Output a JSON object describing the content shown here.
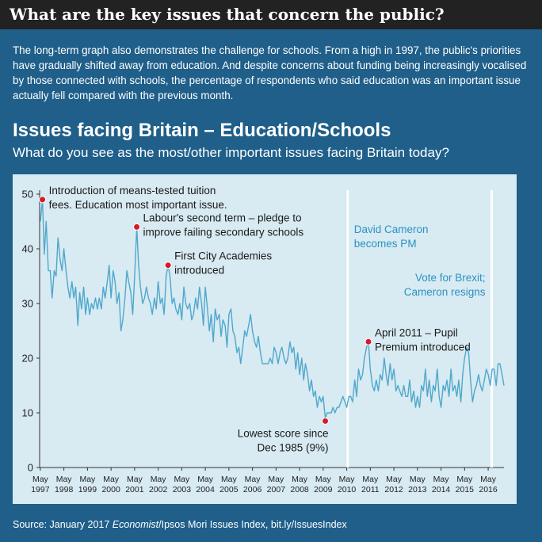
{
  "header": {
    "title": "What are the key issues that concern the public?"
  },
  "intro": "The long-term graph also demonstrates the challenge for schools. From a high in 1997, the public's priorities have gradually shifted away from education. And despite concerns about funding being increasingly vocalised by those connected with schools, the percentage of respondents who said education was an important issue actually fell compared with the previous month.",
  "source": {
    "prefix": "Source: January 2017 ",
    "italic": "Economist",
    "suffix": "/Ipsos Mori Issues Index, bit.ly/IssuesIndex"
  },
  "colors": {
    "background": "#1f5f8a",
    "panel": "#d8eaf2",
    "line": "#4fa8cc",
    "marker": "#d7192a",
    "event_text": "#2b93c2",
    "header": "#222222"
  },
  "chart_data": {
    "type": "line",
    "title": "Issues facing Britain – Education/Schools",
    "subtitle": "What do you see as the most/other important issues facing Britain today?",
    "ylim": [
      0,
      50
    ],
    "yticks": [
      0,
      10,
      20,
      30,
      40,
      50
    ],
    "xlim": [
      1997.3,
      2017.0
    ],
    "x_ticks": [
      {
        "year": "1997",
        "x": 1997.33
      },
      {
        "year": "1998",
        "x": 1998.33
      },
      {
        "year": "1999",
        "x": 1999.33
      },
      {
        "year": "2000",
        "x": 2000.33
      },
      {
        "year": "2001",
        "x": 2001.33
      },
      {
        "year": "2002",
        "x": 2002.33
      },
      {
        "year": "2003",
        "x": 2003.33
      },
      {
        "year": "2004",
        "x": 2004.33
      },
      {
        "year": "2005",
        "x": 2005.33
      },
      {
        "year": "2006",
        "x": 2006.33
      },
      {
        "year": "2007",
        "x": 2007.33
      },
      {
        "year": "2008",
        "x": 2008.33
      },
      {
        "year": "2009",
        "x": 2009.33
      },
      {
        "year": "2010",
        "x": 2010.33
      },
      {
        "year": "2011",
        "x": 2011.33
      },
      {
        "year": "2012",
        "x": 2012.33
      },
      {
        "year": "2013",
        "x": 2013.33
      },
      {
        "year": "2014",
        "x": 2014.33
      },
      {
        "year": "2015",
        "x": 2015.33
      },
      {
        "year": "2016",
        "x": 2016.33
      }
    ],
    "x_tick_month": "May",
    "series": [
      {
        "points": [
          [
            1997.33,
            45
          ],
          [
            1997.42,
            49
          ],
          [
            1997.5,
            39
          ],
          [
            1997.58,
            45
          ],
          [
            1997.67,
            36
          ],
          [
            1997.75,
            36
          ],
          [
            1997.83,
            31
          ],
          [
            1997.92,
            36
          ],
          [
            1998.0,
            35
          ],
          [
            1998.08,
            42
          ],
          [
            1998.17,
            38
          ],
          [
            1998.25,
            36
          ],
          [
            1998.33,
            40
          ],
          [
            1998.42,
            36
          ],
          [
            1998.5,
            33
          ],
          [
            1998.58,
            31
          ],
          [
            1998.67,
            34
          ],
          [
            1998.75,
            31
          ],
          [
            1998.83,
            33
          ],
          [
            1998.92,
            26
          ],
          [
            1999.0,
            32
          ],
          [
            1999.08,
            29
          ],
          [
            1999.17,
            33
          ],
          [
            1999.25,
            28
          ],
          [
            1999.33,
            31
          ],
          [
            1999.42,
            28
          ],
          [
            1999.5,
            30
          ],
          [
            1999.58,
            29
          ],
          [
            1999.67,
            31
          ],
          [
            1999.75,
            29
          ],
          [
            1999.83,
            31
          ],
          [
            1999.92,
            29
          ],
          [
            2000.0,
            33
          ],
          [
            2000.08,
            31
          ],
          [
            2000.17,
            34
          ],
          [
            2000.25,
            37
          ],
          [
            2000.33,
            31
          ],
          [
            2000.42,
            36
          ],
          [
            2000.5,
            34
          ],
          [
            2000.58,
            30
          ],
          [
            2000.67,
            32
          ],
          [
            2000.75,
            25
          ],
          [
            2000.83,
            27
          ],
          [
            2000.92,
            31
          ],
          [
            2001.0,
            36
          ],
          [
            2001.08,
            34
          ],
          [
            2001.17,
            32
          ],
          [
            2001.25,
            28
          ],
          [
            2001.33,
            35
          ],
          [
            2001.42,
            44
          ],
          [
            2001.5,
            37
          ],
          [
            2001.58,
            33
          ],
          [
            2001.67,
            30
          ],
          [
            2001.75,
            31
          ],
          [
            2001.83,
            33
          ],
          [
            2001.92,
            31
          ],
          [
            2002.0,
            30
          ],
          [
            2002.08,
            28
          ],
          [
            2002.17,
            31
          ],
          [
            2002.25,
            29
          ],
          [
            2002.33,
            34
          ],
          [
            2002.42,
            30
          ],
          [
            2002.5,
            31
          ],
          [
            2002.58,
            28
          ],
          [
            2002.67,
            35
          ],
          [
            2002.75,
            37
          ],
          [
            2002.83,
            35
          ],
          [
            2002.92,
            30
          ],
          [
            2003.0,
            31
          ],
          [
            2003.08,
            29
          ],
          [
            2003.17,
            28
          ],
          [
            2003.25,
            30
          ],
          [
            2003.33,
            27
          ],
          [
            2003.42,
            33
          ],
          [
            2003.5,
            30
          ],
          [
            2003.58,
            29
          ],
          [
            2003.67,
            30
          ],
          [
            2003.75,
            27
          ],
          [
            2003.83,
            28
          ],
          [
            2003.92,
            31
          ],
          [
            2004.0,
            29
          ],
          [
            2004.08,
            33
          ],
          [
            2004.17,
            30
          ],
          [
            2004.25,
            26
          ],
          [
            2004.33,
            33
          ],
          [
            2004.42,
            29
          ],
          [
            2004.5,
            25
          ],
          [
            2004.58,
            28
          ],
          [
            2004.67,
            23
          ],
          [
            2004.75,
            29
          ],
          [
            2004.83,
            27
          ],
          [
            2004.92,
            28
          ],
          [
            2005.0,
            24
          ],
          [
            2005.08,
            27
          ],
          [
            2005.17,
            26
          ],
          [
            2005.25,
            22
          ],
          [
            2005.33,
            28
          ],
          [
            2005.42,
            29
          ],
          [
            2005.5,
            25
          ],
          [
            2005.58,
            24
          ],
          [
            2005.67,
            21
          ],
          [
            2005.75,
            22
          ],
          [
            2005.83,
            19
          ],
          [
            2005.92,
            22
          ],
          [
            2006.0,
            25
          ],
          [
            2006.08,
            24
          ],
          [
            2006.17,
            26
          ],
          [
            2006.25,
            28
          ],
          [
            2006.33,
            25
          ],
          [
            2006.42,
            23
          ],
          [
            2006.5,
            22
          ],
          [
            2006.58,
            24
          ],
          [
            2006.67,
            21
          ],
          [
            2006.75,
            19
          ],
          [
            2006.83,
            19
          ],
          [
            2006.92,
            19
          ],
          [
            2007.0,
            19
          ],
          [
            2007.08,
            20
          ],
          [
            2007.17,
            19
          ],
          [
            2007.25,
            22
          ],
          [
            2007.33,
            21
          ],
          [
            2007.42,
            19
          ],
          [
            2007.5,
            21
          ],
          [
            2007.58,
            22
          ],
          [
            2007.67,
            20
          ],
          [
            2007.75,
            19
          ],
          [
            2007.83,
            20
          ],
          [
            2007.92,
            23
          ],
          [
            2008.0,
            21
          ],
          [
            2008.08,
            22
          ],
          [
            2008.17,
            18
          ],
          [
            2008.25,
            21
          ],
          [
            2008.33,
            17
          ],
          [
            2008.42,
            20
          ],
          [
            2008.5,
            16
          ],
          [
            2008.58,
            19
          ],
          [
            2008.67,
            17
          ],
          [
            2008.75,
            14
          ],
          [
            2008.83,
            16
          ],
          [
            2008.92,
            13
          ],
          [
            2009.0,
            14
          ],
          [
            2009.08,
            11
          ],
          [
            2009.17,
            13
          ],
          [
            2009.25,
            12
          ],
          [
            2009.33,
            13
          ],
          [
            2009.42,
            9
          ],
          [
            2009.5,
            10
          ],
          [
            2009.58,
            10
          ],
          [
            2009.67,
            10
          ],
          [
            2009.75,
            11
          ],
          [
            2009.83,
            10
          ],
          [
            2009.92,
            11
          ],
          [
            2010.0,
            11
          ],
          [
            2010.08,
            12
          ],
          [
            2010.17,
            13
          ],
          [
            2010.25,
            12
          ],
          [
            2010.33,
            11
          ],
          [
            2010.42,
            13
          ],
          [
            2010.5,
            13
          ],
          [
            2010.58,
            12
          ],
          [
            2010.67,
            16
          ],
          [
            2010.75,
            13
          ],
          [
            2010.83,
            18
          ],
          [
            2010.92,
            16
          ],
          [
            2011.0,
            17
          ],
          [
            2011.08,
            20
          ],
          [
            2011.17,
            22
          ],
          [
            2011.25,
            23
          ],
          [
            2011.33,
            18
          ],
          [
            2011.42,
            15
          ],
          [
            2011.5,
            14
          ],
          [
            2011.58,
            16
          ],
          [
            2011.67,
            14
          ],
          [
            2011.75,
            17
          ],
          [
            2011.83,
            16
          ],
          [
            2011.92,
            20
          ],
          [
            2012.0,
            17
          ],
          [
            2012.08,
            15
          ],
          [
            2012.17,
            19
          ],
          [
            2012.25,
            16
          ],
          [
            2012.33,
            18
          ],
          [
            2012.42,
            14
          ],
          [
            2012.5,
            15
          ],
          [
            2012.58,
            14
          ],
          [
            2012.67,
            13
          ],
          [
            2012.75,
            15
          ],
          [
            2012.83,
            13
          ],
          [
            2012.92,
            13
          ],
          [
            2013.0,
            16
          ],
          [
            2013.08,
            12
          ],
          [
            2013.17,
            14
          ],
          [
            2013.25,
            11
          ],
          [
            2013.33,
            13
          ],
          [
            2013.42,
            11
          ],
          [
            2013.5,
            15
          ],
          [
            2013.58,
            14
          ],
          [
            2013.67,
            18
          ],
          [
            2013.75,
            13
          ],
          [
            2013.83,
            16
          ],
          [
            2013.92,
            12
          ],
          [
            2014.0,
            15
          ],
          [
            2014.08,
            14
          ],
          [
            2014.17,
            18
          ],
          [
            2014.25,
            13
          ],
          [
            2014.33,
            11
          ],
          [
            2014.42,
            15
          ],
          [
            2014.5,
            14
          ],
          [
            2014.58,
            16
          ],
          [
            2014.67,
            13
          ],
          [
            2014.75,
            18
          ],
          [
            2014.83,
            14
          ],
          [
            2014.92,
            15
          ],
          [
            2015.0,
            13
          ],
          [
            2015.08,
            16
          ],
          [
            2015.17,
            12
          ],
          [
            2015.25,
            17
          ],
          [
            2015.33,
            20
          ],
          [
            2015.42,
            22
          ],
          [
            2015.5,
            21
          ],
          [
            2015.58,
            16
          ],
          [
            2015.67,
            12
          ],
          [
            2015.75,
            14
          ],
          [
            2015.83,
            15
          ],
          [
            2015.92,
            17
          ],
          [
            2016.0,
            15
          ],
          [
            2016.08,
            14
          ],
          [
            2016.17,
            16
          ],
          [
            2016.25,
            18
          ],
          [
            2016.33,
            17
          ],
          [
            2016.42,
            15
          ],
          [
            2016.5,
            18
          ],
          [
            2016.58,
            18
          ],
          [
            2016.67,
            15
          ],
          [
            2016.75,
            19
          ],
          [
            2016.83,
            19
          ],
          [
            2016.92,
            17
          ],
          [
            2017.0,
            15
          ]
        ]
      }
    ],
    "vertical_lines": [
      {
        "x": 2010.37,
        "label_lines": [
          "David Cameron",
          "becomes PM"
        ],
        "label_anchor": "start"
      },
      {
        "x": 2016.48,
        "label_lines": [
          "Vote for Brexit;",
          "Cameron resigns"
        ],
        "label_anchor": "end"
      }
    ],
    "annotations": [
      {
        "x": 1997.42,
        "y": 49,
        "label_lines": [
          "Introduction of means-tested tuition",
          "fees. Education most important issue."
        ],
        "align": "right-above"
      },
      {
        "x": 2001.42,
        "y": 44,
        "label_lines": [
          "Labour's second term – pledge to",
          "improve failing secondary schools"
        ],
        "align": "right-above"
      },
      {
        "x": 2002.75,
        "y": 37,
        "label_lines": [
          "First City Academies",
          "introduced"
        ],
        "align": "right-above"
      },
      {
        "x": 2009.42,
        "y": 8.5,
        "label_lines": [
          "Lowest score since",
          "Dec 1985 (9%)"
        ],
        "align": "left-below"
      },
      {
        "x": 2011.25,
        "y": 23,
        "label_lines": [
          "April 2011 – Pupil",
          "Premium introduced"
        ],
        "align": "right-above"
      }
    ]
  }
}
